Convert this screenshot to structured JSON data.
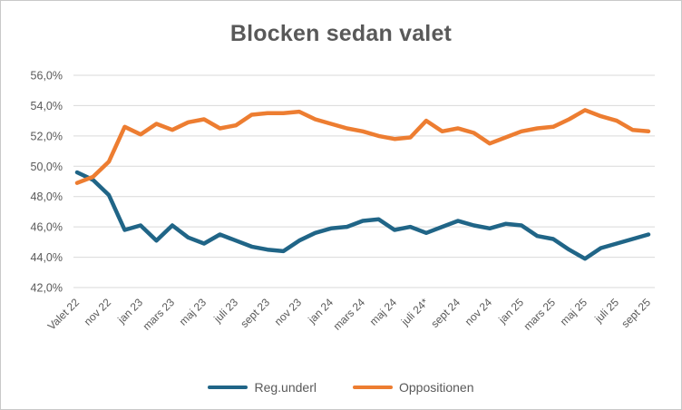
{
  "chart_data": {
    "type": "line",
    "title": "Blocken sedan valet",
    "x_tick_labels": [
      "Valet 22",
      "nov 22",
      "jan 23",
      "mars 23",
      "maj 23",
      "juli 23",
      "sept 23",
      "nov 23",
      "jan 24",
      "mars 24",
      "maj 24",
      "juli 24*",
      "sept 24",
      "nov 24",
      "jan 25",
      "mars 25",
      "maj 25",
      "juli 25",
      "sept 25"
    ],
    "points_between_ticks": 2,
    "n_points": 37,
    "series": [
      {
        "name": "Reg.underl",
        "color": "#206587",
        "values": [
          49.6,
          49.1,
          48.1,
          45.8,
          46.1,
          45.1,
          46.1,
          45.3,
          44.9,
          45.5,
          45.1,
          44.7,
          44.5,
          44.4,
          45.1,
          45.6,
          45.9,
          46.0,
          46.4,
          46.5,
          45.8,
          46.0,
          45.6,
          46.0,
          46.4,
          46.1,
          45.9,
          46.2,
          46.1,
          45.4,
          45.2,
          44.5,
          43.9,
          44.6,
          44.9,
          45.2,
          45.5
        ]
      },
      {
        "name": "Oppositionen",
        "color": "#ED7D31",
        "values": [
          48.9,
          49.3,
          50.3,
          52.6,
          52.1,
          52.8,
          52.4,
          52.9,
          53.1,
          52.5,
          52.7,
          53.4,
          53.5,
          53.5,
          53.6,
          53.1,
          52.8,
          52.5,
          52.3,
          52.0,
          51.8,
          51.9,
          53.0,
          52.3,
          52.5,
          52.2,
          51.5,
          51.9,
          52.3,
          52.5,
          52.6,
          53.1,
          53.7,
          53.3,
          53.0,
          52.4,
          52.3
        ]
      }
    ],
    "ylim": [
      42,
      56
    ],
    "y_ticks": [
      42,
      44,
      46,
      48,
      50,
      52,
      54,
      56
    ],
    "y_tick_labels": [
      "42,0%",
      "44,0%",
      "46,0%",
      "48,0%",
      "50,0%",
      "52,0%",
      "54,0%",
      "56,0%"
    ],
    "grid": "horizontal",
    "legend_position": "bottom"
  },
  "colors": {
    "grid": "#D9D9D9",
    "axis_text": "#595959",
    "title_text": "#595959",
    "frame_border": "#C9C9C9",
    "background": "#FFFFFF"
  }
}
